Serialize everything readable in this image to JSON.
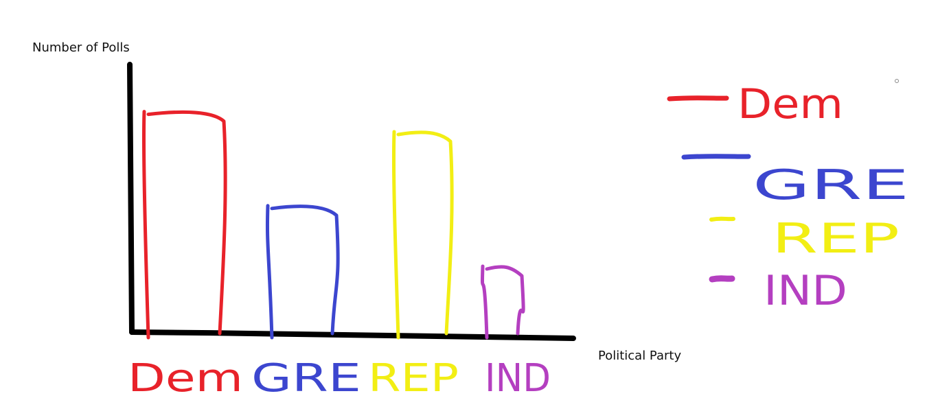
{
  "chart_data": {
    "type": "bar",
    "title": "",
    "ylabel": "Number of Polls",
    "xlabel": "Political Party",
    "categories": [
      "Dem",
      "GRE",
      "REP",
      "IND"
    ],
    "category_labels": [
      "Dem",
      "GRE",
      "REP",
      "IND"
    ],
    "values": [
      3.3,
      1.9,
      3.0,
      1.0
    ],
    "ylim": [
      0,
      4
    ],
    "grid": false,
    "legend": {
      "placement": "right",
      "entries": [
        {
          "label": "Dem",
          "color": "#e8222a"
        },
        {
          "label": "GRE",
          "color": "#3c46cf"
        },
        {
          "label": "REP",
          "color": "#f2ee14"
        },
        {
          "label": "IND",
          "color": "#b43fc0"
        }
      ]
    },
    "colors": [
      "#e8222a",
      "#3c46cf",
      "#f2ee14",
      "#b43fc0"
    ],
    "axis_color": "#000000"
  }
}
